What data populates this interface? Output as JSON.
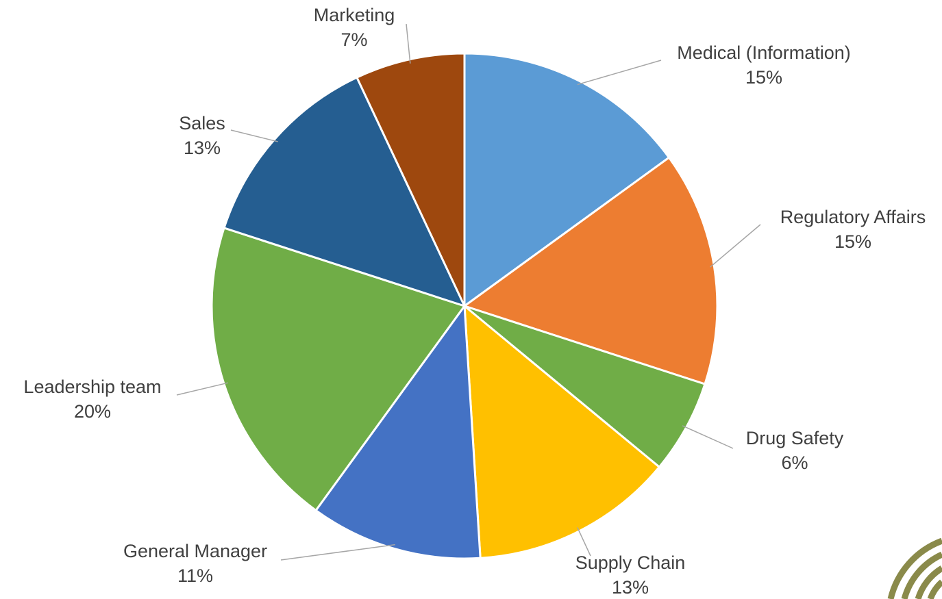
{
  "chart_data": {
    "type": "pie",
    "categories": [
      "Medical (Information)",
      "Regulatory Affairs",
      "Drug Safety",
      "Supply Chain",
      "General Manager",
      "Leadership team",
      "Sales",
      "Marketing"
    ],
    "values": [
      15,
      15,
      6,
      13,
      11,
      20,
      13,
      7
    ],
    "value_labels": [
      "15%",
      "15%",
      "6%",
      "13%",
      "11%",
      "20%",
      "13%",
      "7%"
    ],
    "colors": [
      "#5b9bd5",
      "#ed7d31",
      "#70ad47",
      "#ffc000",
      "#4472c4",
      "#70ad47",
      "#255e91",
      "#9e480e"
    ]
  }
}
